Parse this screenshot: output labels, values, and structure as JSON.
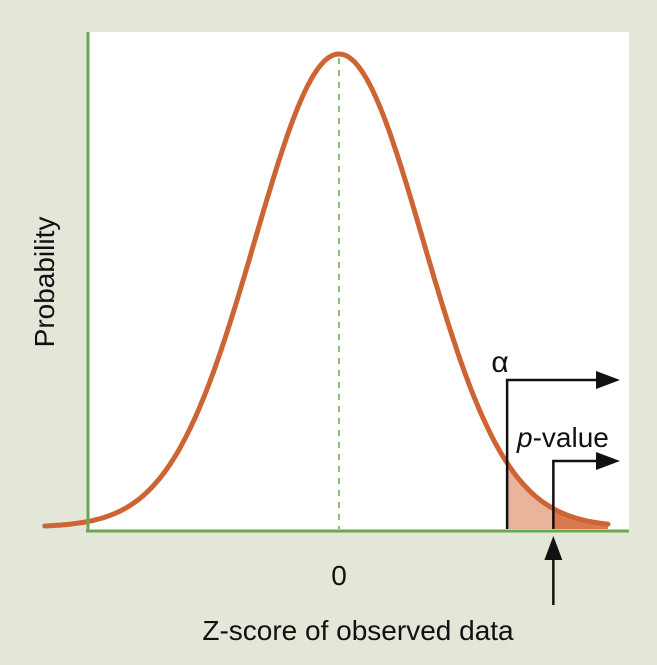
{
  "chart_data": {
    "type": "area",
    "title": "",
    "xlabel": "Z-score of observed data",
    "ylabel": "Probability",
    "x_ticks": [
      {
        "value": 0,
        "label": "0"
      }
    ],
    "xlim": [
      -3.5,
      3.6
    ],
    "ylim": [
      0,
      1.0
    ],
    "grid": false,
    "series": [
      {
        "name": "",
        "distribution": "standard normal density (unnormalized)",
        "x_range": [
          -3.5,
          3.6
        ]
      }
    ],
    "mean_line": {
      "x": 0,
      "style": "dashed"
    },
    "regions": [
      {
        "name": "α",
        "x_start": 2.0,
        "x_end": 3.6
      },
      {
        "name": "p-value",
        "x_start": 2.55,
        "x_end": 3.6
      }
    ],
    "annotations": {
      "alpha_symbol": "α",
      "pvalue_prefix": "p",
      "pvalue_suffix": "-value"
    },
    "colors": {
      "background": "#e2e7d8",
      "plot_background": "#ffffff",
      "axis": "#6aa84f",
      "curve": "#cd6434",
      "alpha_region": "#eab49a",
      "pvalue_region": "#d97952",
      "annotation": "#111111"
    }
  }
}
